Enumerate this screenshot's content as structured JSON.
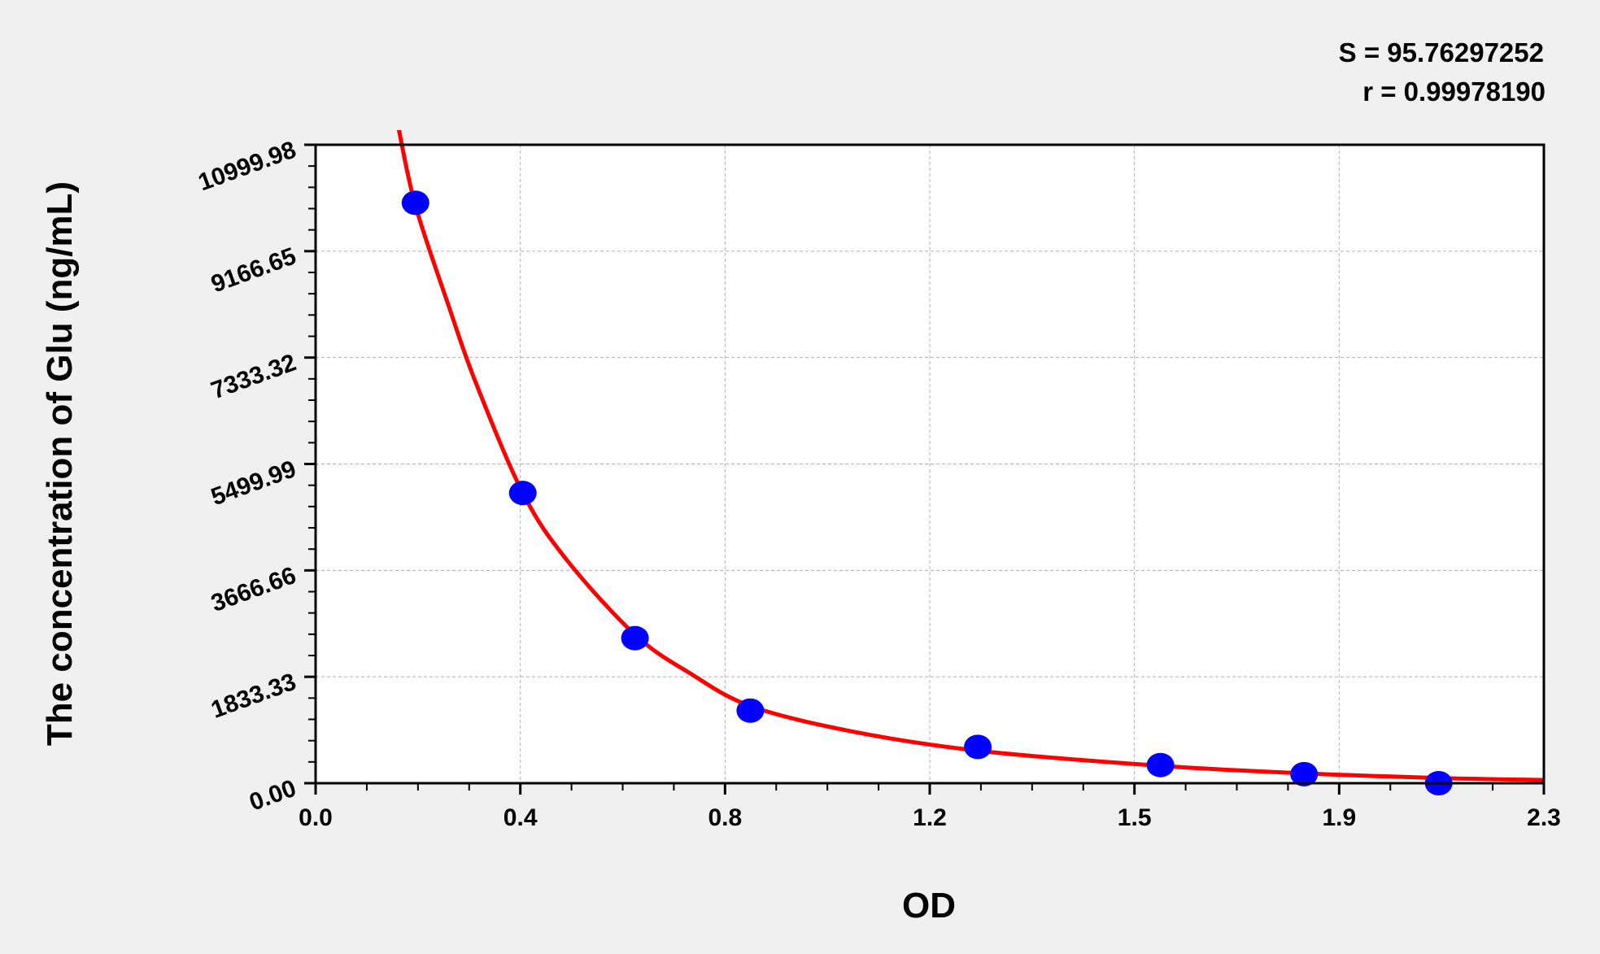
{
  "chart_data": {
    "type": "scatter",
    "xlabel": "OD",
    "ylabel": "The concentration of Glu (ng/mL)",
    "xlim": [
      0.0,
      2.3
    ],
    "ylim": [
      0.0,
      10999.98
    ],
    "x_tick_labels": [
      "0.0",
      "0.4",
      "0.8",
      "1.2",
      "1.5",
      "1.9",
      "2.3"
    ],
    "y_tick_labels": [
      "0.00",
      "1833.33",
      "3666.66",
      "5499.99",
      "7333.32",
      "9166.65",
      "10999.98"
    ],
    "grid": true,
    "annotations": [
      "S = 95.76297252",
      "r = 0.99978190"
    ],
    "points": {
      "color": "#0000ff",
      "x": [
        0.187,
        0.388,
        0.598,
        0.814,
        1.24,
        1.582,
        1.851,
        2.103
      ],
      "y": [
        10000,
        5000,
        2500,
        1250,
        625,
        312.5,
        156.25,
        0
      ]
    },
    "fit_curve": {
      "color": "#ff0000",
      "x": [
        0.155,
        0.187,
        0.25,
        0.3,
        0.388,
        0.47,
        0.598,
        0.7,
        0.814,
        1.0,
        1.24,
        1.582,
        1.851,
        2.103,
        2.3
      ],
      "y": [
        11300,
        9950,
        8200,
        6900,
        5000,
        3850,
        2560,
        1900,
        1330,
        900,
        560,
        300,
        170,
        90,
        55
      ]
    }
  }
}
